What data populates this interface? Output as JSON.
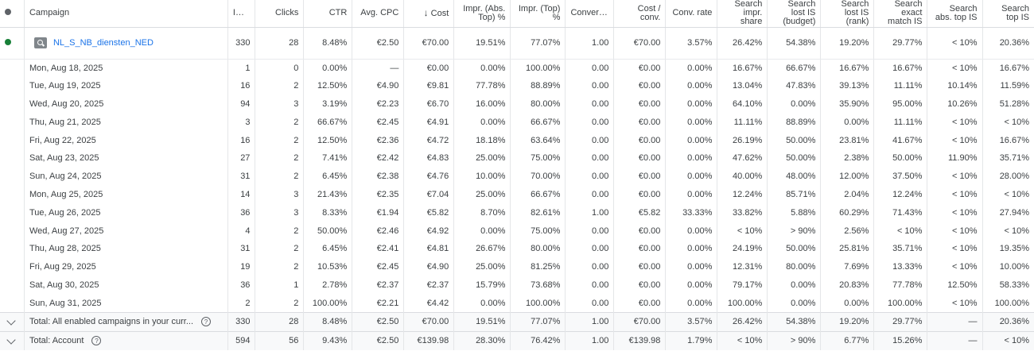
{
  "headers": {
    "campaign": "Campaign",
    "impr": "Impr.",
    "clicks": "Clicks",
    "ctr": "CTR",
    "avg_cpc": "Avg. CPC",
    "cost": "Cost",
    "impr_abs_top": "Impr. (Abs. Top) %",
    "impr_top": "Impr. (Top) %",
    "conversions": "Conversions",
    "cost_conv": "Cost / conv.",
    "conv_rate": "Conv. rate",
    "search_impr_share": "Search impr. share",
    "lost_budget": "Search lost IS (budget)",
    "lost_rank": "Search lost IS (rank)",
    "exact_match": "Search exact match IS",
    "abs_top_is": "Search abs. top IS",
    "top_is": "Search top IS"
  },
  "sort_arrow": "↓",
  "status_colors": {
    "header": "#5f6368",
    "enabled": "#188038"
  },
  "icons": {
    "campaign": "search-campaign-icon",
    "expand": "chevron-down-icon",
    "help": "help-icon"
  },
  "campaign": {
    "name": "NL_S_NB_diensten_NED",
    "impr": "330",
    "clicks": "28",
    "ctr": "8.48%",
    "avg_cpc": "€2.50",
    "cost": "€70.00",
    "abs_top": "19.51%",
    "top": "77.07%",
    "conv": "1.00",
    "cost_conv": "€70.00",
    "conv_rate": "3.57%",
    "share": "26.42%",
    "lost_budget": "54.38%",
    "lost_rank": "19.20%",
    "exact": "29.77%",
    "abs_top_is": "< 10%",
    "top_is": "20.36%"
  },
  "days": [
    {
      "date": "Mon, Aug 18, 2025",
      "impr": "1",
      "clicks": "0",
      "ctr": "0.00%",
      "avg_cpc": "—",
      "cost": "€0.00",
      "abs_top": "0.00%",
      "top": "100.00%",
      "conv": "0.00",
      "cost_conv": "€0.00",
      "conv_rate": "0.00%",
      "share": "16.67%",
      "lost_budget": "66.67%",
      "lost_rank": "16.67%",
      "exact": "16.67%",
      "abs_top_is": "< 10%",
      "top_is": "16.67%"
    },
    {
      "date": "Tue, Aug 19, 2025",
      "impr": "16",
      "clicks": "2",
      "ctr": "12.50%",
      "avg_cpc": "€4.90",
      "cost": "€9.81",
      "abs_top": "77.78%",
      "top": "88.89%",
      "conv": "0.00",
      "cost_conv": "€0.00",
      "conv_rate": "0.00%",
      "share": "13.04%",
      "lost_budget": "47.83%",
      "lost_rank": "39.13%",
      "exact": "11.11%",
      "abs_top_is": "10.14%",
      "top_is": "11.59%"
    },
    {
      "date": "Wed, Aug 20, 2025",
      "impr": "94",
      "clicks": "3",
      "ctr": "3.19%",
      "avg_cpc": "€2.23",
      "cost": "€6.70",
      "abs_top": "16.00%",
      "top": "80.00%",
      "conv": "0.00",
      "cost_conv": "€0.00",
      "conv_rate": "0.00%",
      "share": "64.10%",
      "lost_budget": "0.00%",
      "lost_rank": "35.90%",
      "exact": "95.00%",
      "abs_top_is": "10.26%",
      "top_is": "51.28%"
    },
    {
      "date": "Thu, Aug 21, 2025",
      "impr": "3",
      "clicks": "2",
      "ctr": "66.67%",
      "avg_cpc": "€2.45",
      "cost": "€4.91",
      "abs_top": "0.00%",
      "top": "66.67%",
      "conv": "0.00",
      "cost_conv": "€0.00",
      "conv_rate": "0.00%",
      "share": "11.11%",
      "lost_budget": "88.89%",
      "lost_rank": "0.00%",
      "exact": "11.11%",
      "abs_top_is": "< 10%",
      "top_is": "< 10%"
    },
    {
      "date": "Fri, Aug 22, 2025",
      "impr": "16",
      "clicks": "2",
      "ctr": "12.50%",
      "avg_cpc": "€2.36",
      "cost": "€4.72",
      "abs_top": "18.18%",
      "top": "63.64%",
      "conv": "0.00",
      "cost_conv": "€0.00",
      "conv_rate": "0.00%",
      "share": "26.19%",
      "lost_budget": "50.00%",
      "lost_rank": "23.81%",
      "exact": "41.67%",
      "abs_top_is": "< 10%",
      "top_is": "16.67%"
    },
    {
      "date": "Sat, Aug 23, 2025",
      "impr": "27",
      "clicks": "2",
      "ctr": "7.41%",
      "avg_cpc": "€2.42",
      "cost": "€4.83",
      "abs_top": "25.00%",
      "top": "75.00%",
      "conv": "0.00",
      "cost_conv": "€0.00",
      "conv_rate": "0.00%",
      "share": "47.62%",
      "lost_budget": "50.00%",
      "lost_rank": "2.38%",
      "exact": "50.00%",
      "abs_top_is": "11.90%",
      "top_is": "35.71%"
    },
    {
      "date": "Sun, Aug 24, 2025",
      "impr": "31",
      "clicks": "2",
      "ctr": "6.45%",
      "avg_cpc": "€2.38",
      "cost": "€4.76",
      "abs_top": "10.00%",
      "top": "70.00%",
      "conv": "0.00",
      "cost_conv": "€0.00",
      "conv_rate": "0.00%",
      "share": "40.00%",
      "lost_budget": "48.00%",
      "lost_rank": "12.00%",
      "exact": "37.50%",
      "abs_top_is": "< 10%",
      "top_is": "28.00%"
    },
    {
      "date": "Mon, Aug 25, 2025",
      "impr": "14",
      "clicks": "3",
      "ctr": "21.43%",
      "avg_cpc": "€2.35",
      "cost": "€7.04",
      "abs_top": "25.00%",
      "top": "66.67%",
      "conv": "0.00",
      "cost_conv": "€0.00",
      "conv_rate": "0.00%",
      "share": "12.24%",
      "lost_budget": "85.71%",
      "lost_rank": "2.04%",
      "exact": "12.24%",
      "abs_top_is": "< 10%",
      "top_is": "< 10%"
    },
    {
      "date": "Tue, Aug 26, 2025",
      "impr": "36",
      "clicks": "3",
      "ctr": "8.33%",
      "avg_cpc": "€1.94",
      "cost": "€5.82",
      "abs_top": "8.70%",
      "top": "82.61%",
      "conv": "1.00",
      "cost_conv": "€5.82",
      "conv_rate": "33.33%",
      "share": "33.82%",
      "lost_budget": "5.88%",
      "lost_rank": "60.29%",
      "exact": "71.43%",
      "abs_top_is": "< 10%",
      "top_is": "27.94%"
    },
    {
      "date": "Wed, Aug 27, 2025",
      "impr": "4",
      "clicks": "2",
      "ctr": "50.00%",
      "avg_cpc": "€2.46",
      "cost": "€4.92",
      "abs_top": "0.00%",
      "top": "75.00%",
      "conv": "0.00",
      "cost_conv": "€0.00",
      "conv_rate": "0.00%",
      "share": "< 10%",
      "lost_budget": "> 90%",
      "lost_rank": "2.56%",
      "exact": "< 10%",
      "abs_top_is": "< 10%",
      "top_is": "< 10%"
    },
    {
      "date": "Thu, Aug 28, 2025",
      "impr": "31",
      "clicks": "2",
      "ctr": "6.45%",
      "avg_cpc": "€2.41",
      "cost": "€4.81",
      "abs_top": "26.67%",
      "top": "80.00%",
      "conv": "0.00",
      "cost_conv": "€0.00",
      "conv_rate": "0.00%",
      "share": "24.19%",
      "lost_budget": "50.00%",
      "lost_rank": "25.81%",
      "exact": "35.71%",
      "abs_top_is": "< 10%",
      "top_is": "19.35%"
    },
    {
      "date": "Fri, Aug 29, 2025",
      "impr": "19",
      "clicks": "2",
      "ctr": "10.53%",
      "avg_cpc": "€2.45",
      "cost": "€4.90",
      "abs_top": "25.00%",
      "top": "81.25%",
      "conv": "0.00",
      "cost_conv": "€0.00",
      "conv_rate": "0.00%",
      "share": "12.31%",
      "lost_budget": "80.00%",
      "lost_rank": "7.69%",
      "exact": "13.33%",
      "abs_top_is": "< 10%",
      "top_is": "10.00%"
    },
    {
      "date": "Sat, Aug 30, 2025",
      "impr": "36",
      "clicks": "1",
      "ctr": "2.78%",
      "avg_cpc": "€2.37",
      "cost": "€2.37",
      "abs_top": "15.79%",
      "top": "73.68%",
      "conv": "0.00",
      "cost_conv": "€0.00",
      "conv_rate": "0.00%",
      "share": "79.17%",
      "lost_budget": "0.00%",
      "lost_rank": "20.83%",
      "exact": "77.78%",
      "abs_top_is": "12.50%",
      "top_is": "58.33%"
    },
    {
      "date": "Sun, Aug 31, 2025",
      "impr": "2",
      "clicks": "2",
      "ctr": "100.00%",
      "avg_cpc": "€2.21",
      "cost": "€4.42",
      "abs_top": "0.00%",
      "top": "100.00%",
      "conv": "0.00",
      "cost_conv": "€0.00",
      "conv_rate": "0.00%",
      "share": "100.00%",
      "lost_budget": "0.00%",
      "lost_rank": "0.00%",
      "exact": "100.00%",
      "abs_top_is": "< 10%",
      "top_is": "100.00%"
    }
  ],
  "totals": [
    {
      "label": "Total: All enabled campaigns in your curr...",
      "impr": "330",
      "clicks": "28",
      "ctr": "8.48%",
      "avg_cpc": "€2.50",
      "cost": "€70.00",
      "abs_top": "19.51%",
      "top": "77.07%",
      "conv": "1.00",
      "cost_conv": "€70.00",
      "conv_rate": "3.57%",
      "share": "26.42%",
      "lost_budget": "54.38%",
      "lost_rank": "19.20%",
      "exact": "29.77%",
      "abs_top_is": "—",
      "top_is": "20.36%"
    },
    {
      "label": "Total: Account",
      "impr": "594",
      "clicks": "56",
      "ctr": "9.43%",
      "avg_cpc": "€2.50",
      "cost": "€139.98",
      "abs_top": "28.30%",
      "top": "76.42%",
      "conv": "1.00",
      "cost_conv": "€139.98",
      "conv_rate": "1.79%",
      "share": "< 10%",
      "lost_budget": "> 90%",
      "lost_rank": "6.77%",
      "exact": "15.26%",
      "abs_top_is": "—",
      "top_is": "< 10%"
    }
  ]
}
